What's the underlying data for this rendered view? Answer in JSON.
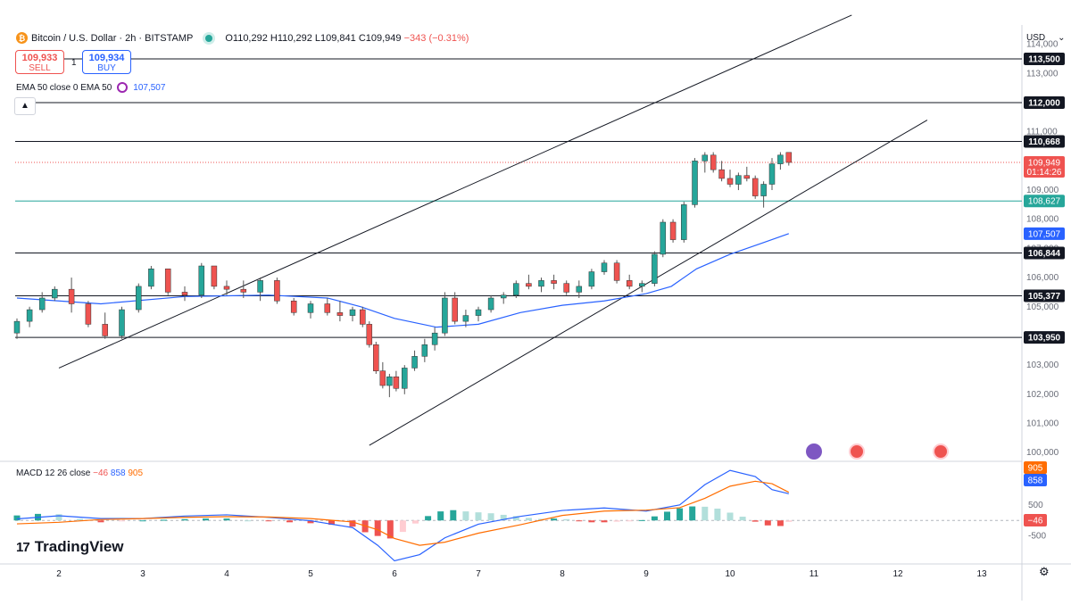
{
  "header": {
    "symbol": "Bitcoin / U.S. Dollar · 2h · BITSTAMP",
    "icon": "bitcoin-icon",
    "open": "O110,292",
    "high": "H110,292",
    "low": "L109,841",
    "close": "C109,949",
    "change": "−343 (−0.31%)"
  },
  "trade": {
    "sell_price": "109,933",
    "sell_label": "SELL",
    "spread": "1",
    "buy_price": "109,934",
    "buy_label": "BUY"
  },
  "ema_indicator": {
    "label": "EMA 50 close 0 EMA 50",
    "value": "107,507"
  },
  "macd_indicator": {
    "label": "MACD 12 26 close",
    "hist": "−46",
    "macd": "858",
    "signal": "905"
  },
  "branding": {
    "logo": "TradingView"
  },
  "currency": "USD",
  "colors": {
    "up": "#26a69a",
    "down": "#ef5350",
    "ema": "#2962ff",
    "signal": "#ff6d00",
    "level": "#131722"
  },
  "chart_data": [
    {
      "type": "candlestick",
      "title": "Bitcoin / U.S. Dollar · 2h · BITSTAMP",
      "x_ticks": [
        "2",
        "3",
        "4",
        "5",
        "6",
        "7",
        "8",
        "9",
        "10",
        "11",
        "12",
        "13"
      ],
      "y_ticks": [
        "114,000",
        "113,000",
        "112,000",
        "111,000",
        "110,000",
        "109,000",
        "108,000",
        "107,000",
        "106,000",
        "105,000",
        "104,000",
        "103,000",
        "102,000",
        "101,000",
        "100,000"
      ],
      "ylim": [
        99700,
        114600
      ],
      "horizontal_levels": [
        {
          "label": "113,500",
          "value": 113500
        },
        {
          "label": "112,000",
          "value": 112000
        },
        {
          "label": "110,668",
          "value": 110668
        },
        {
          "label": "106,844",
          "value": 106844
        },
        {
          "label": "105,377",
          "value": 105377
        },
        {
          "label": "103,950",
          "value": 103950
        }
      ],
      "price_tags": [
        {
          "label": "109,949",
          "sublabel": "01:14:26",
          "value": 109949,
          "color": "#ef5350"
        },
        {
          "label": "108,627",
          "value": 108627,
          "color": "#26a69a"
        },
        {
          "label": "107,507",
          "value": 107507,
          "color": "#2962ff"
        }
      ],
      "channel_lines": [
        {
          "from": [
            2.0,
            102900
          ],
          "to": [
            11.45,
            115000
          ]
        },
        {
          "from": [
            5.7,
            100250
          ],
          "to": [
            12.35,
            111400
          ]
        }
      ],
      "candles": [
        [
          1.5,
          104100,
          104600,
          103900,
          104500
        ],
        [
          1.65,
          104500,
          105000,
          104300,
          104900
        ],
        [
          1.8,
          104900,
          105500,
          104800,
          105300
        ],
        [
          1.95,
          105300,
          105700,
          105200,
          105600
        ],
        [
          2.15,
          105600,
          106000,
          104800,
          105100
        ],
        [
          2.35,
          105100,
          105200,
          104300,
          104400
        ],
        [
          2.55,
          104400,
          104800,
          103900,
          104000
        ],
        [
          2.75,
          104000,
          105000,
          103900,
          104900
        ],
        [
          2.95,
          104900,
          105800,
          104800,
          105700
        ],
        [
          3.1,
          105700,
          106400,
          105600,
          106300
        ],
        [
          3.3,
          106300,
          106300,
          105400,
          105500
        ],
        [
          3.5,
          105500,
          105700,
          105200,
          105400
        ],
        [
          3.7,
          105400,
          106500,
          105300,
          106400
        ],
        [
          3.85,
          106400,
          106400,
          105600,
          105700
        ],
        [
          4.0,
          105700,
          105900,
          105400,
          105600
        ],
        [
          4.2,
          105600,
          105900,
          105300,
          105500
        ],
        [
          4.4,
          105500,
          106000,
          105200,
          105900
        ],
        [
          4.6,
          105900,
          106000,
          105100,
          105200
        ],
        [
          4.8,
          105200,
          105300,
          104700,
          104800
        ],
        [
          5.0,
          104800,
          105200,
          104600,
          105100
        ],
        [
          5.2,
          105100,
          105300,
          104700,
          104800
        ],
        [
          5.35,
          104800,
          105200,
          104500,
          104700
        ],
        [
          5.5,
          104700,
          105000,
          104500,
          104900
        ],
        [
          5.62,
          104900,
          105000,
          104300,
          104400
        ],
        [
          5.7,
          104400,
          104500,
          103600,
          103700
        ],
        [
          5.78,
          103700,
          103800,
          102700,
          102800
        ],
        [
          5.86,
          102800,
          103100,
          102200,
          102300
        ],
        [
          5.94,
          102300,
          102700,
          101900,
          102600
        ],
        [
          6.02,
          102600,
          102800,
          102100,
          102200
        ],
        [
          6.12,
          102200,
          103000,
          102000,
          102900
        ],
        [
          6.24,
          102900,
          103500,
          102800,
          103300
        ],
        [
          6.36,
          103300,
          103900,
          103100,
          103700
        ],
        [
          6.48,
          103700,
          104300,
          103500,
          104100
        ],
        [
          6.6,
          104100,
          105500,
          104000,
          105300
        ],
        [
          6.72,
          105300,
          105500,
          104400,
          104500
        ],
        [
          6.85,
          104500,
          104900,
          104300,
          104700
        ],
        [
          7.0,
          104700,
          105000,
          104500,
          104900
        ],
        [
          7.15,
          104900,
          105400,
          104800,
          105300
        ],
        [
          7.3,
          105300,
          105500,
          105100,
          105400
        ],
        [
          7.45,
          105400,
          105900,
          105300,
          105800
        ],
        [
          7.6,
          105800,
          106100,
          105600,
          105700
        ],
        [
          7.75,
          105700,
          106000,
          105500,
          105900
        ],
        [
          7.9,
          105900,
          106100,
          105600,
          105800
        ],
        [
          8.05,
          105800,
          105900,
          105400,
          105500
        ],
        [
          8.2,
          105500,
          105900,
          105300,
          105700
        ],
        [
          8.35,
          105700,
          106300,
          105600,
          106200
        ],
        [
          8.5,
          106200,
          106600,
          106100,
          106500
        ],
        [
          8.65,
          106500,
          106600,
          105800,
          105900
        ],
        [
          8.8,
          105900,
          106100,
          105600,
          105700
        ],
        [
          8.95,
          105700,
          105900,
          105500,
          105800
        ],
        [
          9.1,
          105800,
          106900,
          105700,
          106800
        ],
        [
          9.2,
          106800,
          108000,
          106700,
          107900
        ],
        [
          9.32,
          107900,
          108000,
          107200,
          107300
        ],
        [
          9.45,
          107300,
          108600,
          107200,
          108500
        ],
        [
          9.58,
          108500,
          110100,
          108400,
          110000
        ],
        [
          9.7,
          110000,
          110300,
          109600,
          110200
        ],
        [
          9.8,
          110200,
          110300,
          109600,
          109700
        ],
        [
          9.9,
          109700,
          110000,
          109300,
          109400
        ],
        [
          10.0,
          109400,
          109700,
          109100,
          109200
        ],
        [
          10.1,
          109200,
          109600,
          109000,
          109500
        ],
        [
          10.2,
          109500,
          109800,
          109300,
          109400
        ],
        [
          10.3,
          109400,
          109500,
          108700,
          108800
        ],
        [
          10.4,
          108800,
          109300,
          108400,
          109200
        ],
        [
          10.5,
          109200,
          110100,
          109000,
          109900
        ],
        [
          10.6,
          109900,
          110300,
          109700,
          110200
        ],
        [
          10.7,
          110292,
          110292,
          109841,
          109949
        ]
      ],
      "ema50": [
        [
          1.5,
          105300
        ],
        [
          2.5,
          105100
        ],
        [
          3.5,
          105350
        ],
        [
          4.5,
          105400
        ],
        [
          5.2,
          105300
        ],
        [
          5.6,
          105000
        ],
        [
          6.0,
          104600
        ],
        [
          6.5,
          104300
        ],
        [
          7.0,
          104400
        ],
        [
          7.5,
          104800
        ],
        [
          8.0,
          105050
        ],
        [
          8.5,
          105200
        ],
        [
          9.0,
          105450
        ],
        [
          9.3,
          105700
        ],
        [
          9.6,
          106300
        ],
        [
          10.0,
          106800
        ],
        [
          10.4,
          107200
        ],
        [
          10.7,
          107507
        ]
      ]
    },
    {
      "type": "line",
      "title": "MACD 12 26 close",
      "y_ticks": [
        "500",
        "-500"
      ],
      "ylim": [
        -1400,
        1900
      ],
      "series": [
        {
          "name": "MACD",
          "color": "#2962ff",
          "values": [
            [
              1.5,
              50
            ],
            [
              2.0,
              150
            ],
            [
              2.5,
              60
            ],
            [
              3.0,
              60
            ],
            [
              3.5,
              140
            ],
            [
              4.0,
              180
            ],
            [
              4.5,
              100
            ],
            [
              5.0,
              -10
            ],
            [
              5.5,
              -230
            ],
            [
              5.8,
              -800
            ],
            [
              6.0,
              -1300
            ],
            [
              6.3,
              -1100
            ],
            [
              6.6,
              -560
            ],
            [
              7.0,
              -120
            ],
            [
              7.5,
              130
            ],
            [
              8.0,
              320
            ],
            [
              8.5,
              400
            ],
            [
              9.0,
              300
            ],
            [
              9.4,
              500
            ],
            [
              9.7,
              1150
            ],
            [
              10.0,
              1610
            ],
            [
              10.3,
              1410
            ],
            [
              10.5,
              990
            ],
            [
              10.7,
              858
            ]
          ]
        },
        {
          "name": "Signal",
          "color": "#ff6d00",
          "values": [
            [
              1.5,
              -110
            ],
            [
              2.0,
              -60
            ],
            [
              2.5,
              30
            ],
            [
              3.0,
              60
            ],
            [
              3.5,
              100
            ],
            [
              4.0,
              120
            ],
            [
              4.5,
              110
            ],
            [
              5.0,
              60
            ],
            [
              5.5,
              -50
            ],
            [
              5.8,
              -300
            ],
            [
              6.0,
              -580
            ],
            [
              6.3,
              -800
            ],
            [
              6.6,
              -700
            ],
            [
              7.0,
              -410
            ],
            [
              7.5,
              -140
            ],
            [
              8.0,
              160
            ],
            [
              8.5,
              300
            ],
            [
              9.0,
              330
            ],
            [
              9.4,
              410
            ],
            [
              9.7,
              710
            ],
            [
              10.0,
              1100
            ],
            [
              10.3,
              1260
            ],
            [
              10.5,
              1180
            ],
            [
              10.7,
              905
            ]
          ]
        }
      ],
      "histogram": [
        [
          1.5,
          160
        ],
        [
          1.75,
          210
        ],
        [
          2.0,
          200
        ],
        [
          2.25,
          50
        ],
        [
          2.5,
          -60
        ],
        [
          2.75,
          -30
        ],
        [
          3.0,
          0
        ],
        [
          3.25,
          20
        ],
        [
          3.5,
          40
        ],
        [
          3.75,
          60
        ],
        [
          4.0,
          60
        ],
        [
          4.25,
          0
        ],
        [
          4.5,
          -20
        ],
        [
          4.75,
          -60
        ],
        [
          5.0,
          -90
        ],
        [
          5.25,
          -140
        ],
        [
          5.5,
          -200
        ],
        [
          5.65,
          -380
        ],
        [
          5.8,
          -500
        ],
        [
          5.95,
          -580
        ],
        [
          6.1,
          -370
        ],
        [
          6.25,
          -100
        ],
        [
          6.4,
          140
        ],
        [
          6.55,
          290
        ],
        [
          6.7,
          330
        ],
        [
          6.85,
          290
        ],
        [
          7.0,
          260
        ],
        [
          7.15,
          230
        ],
        [
          7.3,
          180
        ],
        [
          7.45,
          140
        ],
        [
          7.6,
          80
        ],
        [
          7.75,
          50
        ],
        [
          7.9,
          60
        ],
        [
          8.05,
          40
        ],
        [
          8.2,
          -20
        ],
        [
          8.35,
          -60
        ],
        [
          8.5,
          -60
        ],
        [
          8.65,
          -40
        ],
        [
          8.8,
          -30
        ],
        [
          8.95,
          10
        ],
        [
          9.1,
          130
        ],
        [
          9.25,
          280
        ],
        [
          9.4,
          390
        ],
        [
          9.55,
          450
        ],
        [
          9.7,
          440
        ],
        [
          9.85,
          380
        ],
        [
          10.0,
          250
        ],
        [
          10.15,
          120
        ],
        [
          10.3,
          -40
        ],
        [
          10.45,
          -160
        ],
        [
          10.6,
          -180
        ],
        [
          10.7,
          -46
        ]
      ]
    }
  ]
}
